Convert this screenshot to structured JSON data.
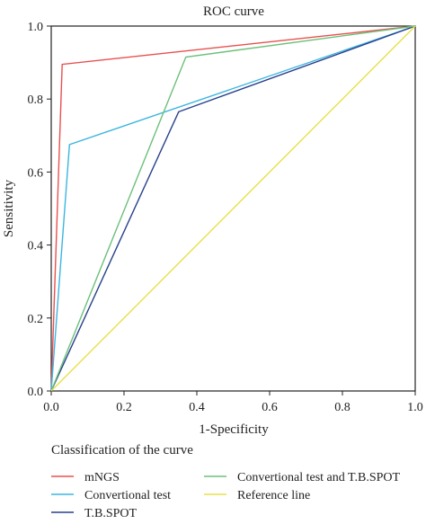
{
  "chart_data": {
    "type": "line",
    "title": "ROC curve",
    "xlabel": "1-Specificity",
    "ylabel": "Sensitivity",
    "xlim": [
      0,
      1
    ],
    "ylim": [
      0,
      1
    ],
    "xticks": [
      "0.0",
      "0.2",
      "0.4",
      "0.6",
      "0.8",
      "1.0"
    ],
    "yticks": [
      "0.0",
      "0.2",
      "0.4",
      "0.6",
      "0.8",
      "1.0"
    ],
    "grid": false,
    "legend_title": "Classification of the curve",
    "legend_position": "bottom",
    "series": [
      {
        "name": "mNGS",
        "color": "#e8504f",
        "x": [
          0,
          0.03,
          1
        ],
        "y": [
          0,
          0.895,
          1
        ]
      },
      {
        "name": "Convertional test",
        "color": "#3bb5e0",
        "x": [
          0,
          0.05,
          1
        ],
        "y": [
          0,
          0.675,
          1
        ]
      },
      {
        "name": "T.B.SPOT",
        "color": "#27408b",
        "x": [
          0,
          0.35,
          1
        ],
        "y": [
          0,
          0.765,
          1
        ]
      },
      {
        "name": "Convertional test and T.B.SPOT",
        "color": "#6cc07a",
        "x": [
          0,
          0.37,
          1
        ],
        "y": [
          0,
          0.915,
          1
        ]
      },
      {
        "name": "Reference line",
        "color": "#e8e04a",
        "x": [
          0,
          1
        ],
        "y": [
          0,
          1
        ]
      }
    ]
  }
}
